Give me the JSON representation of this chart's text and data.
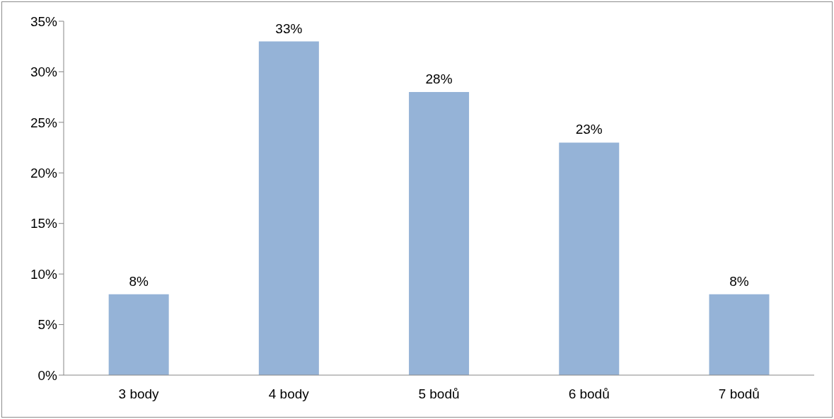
{
  "chart_data": {
    "type": "bar",
    "categories": [
      "3 body",
      "4 body",
      "5 bodů",
      "6 bodů",
      "7 bodů"
    ],
    "values": [
      8,
      33,
      28,
      23,
      8
    ],
    "value_labels": [
      "8%",
      "33%",
      "28%",
      "23%",
      "8%"
    ],
    "color": "#95b3d7",
    "ylim": [
      0,
      35
    ],
    "yticks": [
      {
        "value": 0,
        "label": "0%"
      },
      {
        "value": 5,
        "label": "5%"
      },
      {
        "value": 10,
        "label": "10%"
      },
      {
        "value": 15,
        "label": "15%"
      },
      {
        "value": 20,
        "label": "20%"
      },
      {
        "value": 25,
        "label": "25%"
      },
      {
        "value": 30,
        "label": "30%"
      },
      {
        "value": 35,
        "label": "35%"
      }
    ]
  }
}
